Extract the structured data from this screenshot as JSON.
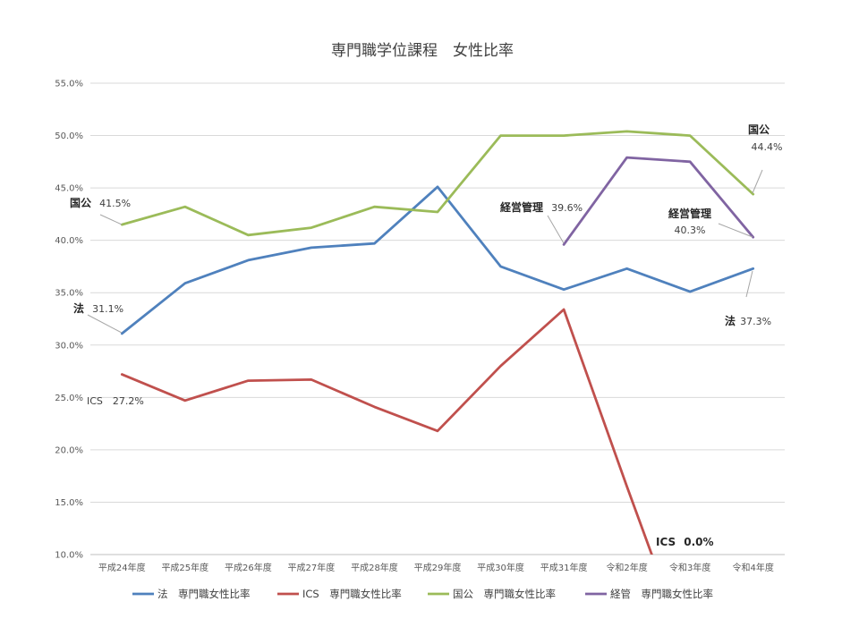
{
  "chart_data": {
    "type": "line",
    "title": "専門職学位課程　女性比率",
    "xlabel": "",
    "ylabel": "",
    "ylim": [
      10,
      55
    ],
    "yticks": [
      "10.0%",
      "15.0%",
      "20.0%",
      "25.0%",
      "30.0%",
      "35.0%",
      "40.0%",
      "45.0%",
      "50.0%",
      "55.0%"
    ],
    "grid": true,
    "legend_position": "bottom",
    "categories": [
      "平成24年度",
      "平成25年度",
      "平成26年度",
      "平成27年度",
      "平成28年度",
      "平成29年度",
      "平成30年度",
      "平成31年度",
      "令和2年度",
      "令和3年度",
      "令和4年度"
    ],
    "series": [
      {
        "name": "法　専門職女性比率",
        "color": "#4f81bd",
        "values": [
          31.1,
          35.9,
          38.1,
          39.3,
          39.7,
          45.1,
          37.5,
          35.3,
          37.3,
          35.1,
          37.3
        ]
      },
      {
        "name": "ICS　専門職女性比率",
        "color": "#c0504d",
        "values": [
          27.2,
          24.7,
          26.6,
          26.7,
          24.1,
          21.8,
          28.0,
          33.4,
          16.5,
          0.0,
          null
        ]
      },
      {
        "name": "国公　専門職女性比率",
        "color": "#9bbb59",
        "values": [
          41.5,
          43.2,
          40.5,
          41.2,
          43.2,
          42.7,
          50.0,
          50.0,
          50.4,
          50.0,
          44.4
        ]
      },
      {
        "name": "経管　専門職女性比率",
        "color": "#8064a2",
        "values": [
          null,
          null,
          null,
          null,
          null,
          null,
          null,
          39.6,
          47.9,
          47.5,
          40.3
        ]
      }
    ],
    "annotations": {
      "kokko_start_name": "国公",
      "kokko_start_val": "41.5%",
      "ho_start_name": "法",
      "ho_start_val": "31.1%",
      "ics_start": "ICS　27.2%",
      "keiei_start_name": "経営管理",
      "keiei_start_val": "39.6%",
      "kokko_end_name": "国公",
      "kokko_end_val": "44.4%",
      "keiei_end_name": "経営管理",
      "keiei_end_val": "40.3%",
      "ho_end_name": "法",
      "ho_end_val": "37.3%",
      "ics_end_name": "ICS",
      "ics_end_val": "0.0%"
    }
  }
}
